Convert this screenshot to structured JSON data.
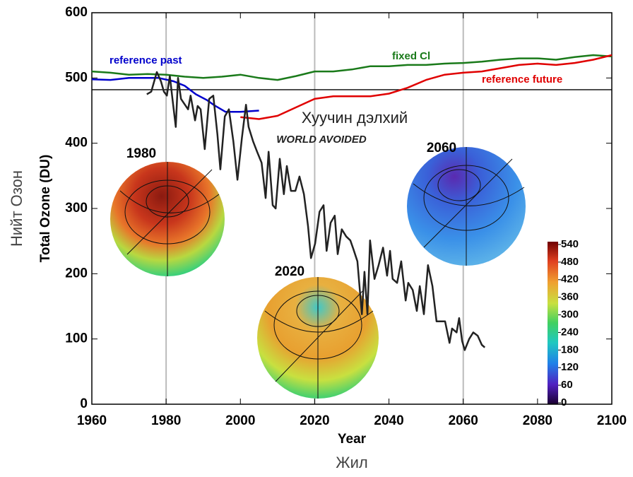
{
  "chart_data": {
    "type": "line",
    "title": "Хуучин дэлхий",
    "xlabel": "Year",
    "ylabel": "Total Ozone (DU)",
    "xlabel_translation": "Жил",
    "ylabel_translation": "Нийт Озон",
    "xlim": [
      1960,
      2100
    ],
    "ylim": [
      0,
      600
    ],
    "xticks": [
      1960,
      1980,
      2000,
      2020,
      2040,
      2060,
      2080,
      2100
    ],
    "yticks": [
      0,
      100,
      200,
      300,
      400,
      500,
      600
    ],
    "vlines": [
      1980,
      2020,
      2060
    ],
    "reference_line": 482,
    "globes": [
      "1980",
      "2020",
      "2060"
    ],
    "colorbar": {
      "lim": [
        0,
        540
      ],
      "ticks": [
        0,
        60,
        120,
        180,
        240,
        300,
        360,
        420,
        480,
        540
      ]
    },
    "series": [
      {
        "name": "reference past",
        "color": "#0000cc",
        "x": [
          1960,
          1965,
          1970,
          1975,
          1978,
          1982,
          1985,
          1988,
          1991,
          1993,
          1996,
          2000,
          2005
        ],
        "values": [
          498,
          497,
          500,
          500,
          500,
          495,
          488,
          475,
          466,
          458,
          448,
          448,
          450
        ]
      },
      {
        "name": "fixed Cl",
        "color": "#1a7a1a",
        "x": [
          1960,
          1965,
          1970,
          1975,
          1980,
          1985,
          1990,
          1995,
          2000,
          2005,
          2010,
          2015,
          2020,
          2025,
          2030,
          2035,
          2040,
          2045,
          2050,
          2055,
          2060,
          2065,
          2070,
          2075,
          2080,
          2085,
          2090,
          2095,
          2100
        ],
        "values": [
          510,
          508,
          505,
          506,
          505,
          502,
          500,
          502,
          505,
          500,
          497,
          503,
          510,
          510,
          513,
          518,
          518,
          520,
          520,
          522,
          523,
          525,
          528,
          530,
          530,
          528,
          532,
          535,
          533
        ]
      },
      {
        "name": "reference future",
        "color": "#e00000",
        "x": [
          2000,
          2005,
          2010,
          2015,
          2020,
          2025,
          2030,
          2035,
          2040,
          2045,
          2050,
          2055,
          2060,
          2065,
          2070,
          2075,
          2080,
          2085,
          2090,
          2095,
          2100
        ],
        "values": [
          440,
          437,
          442,
          455,
          468,
          472,
          472,
          472,
          476,
          485,
          497,
          505,
          508,
          510,
          515,
          520,
          522,
          520,
          523,
          528,
          535
        ]
      },
      {
        "name": "WORLD AVOIDED",
        "color": "#222222",
        "x": [
          1974.8,
          1976,
          1977.5,
          1978.6,
          1979.4,
          1980.2,
          1981,
          1981.7,
          1982.6,
          1983.2,
          1984,
          1984.7,
          1985.9,
          1986.6,
          1987.8,
          1988.5,
          1989.3,
          1990.4,
          1991.6,
          1992.7,
          1993.8,
          1994.6,
          1995.8,
          1996.9,
          1998.1,
          1999.2,
          2000.4,
          2001.5,
          2002.2,
          2003.4,
          2004.5,
          2005.7,
          2006.8,
          2007.6,
          2008.7,
          2009.5,
          2010.6,
          2011.7,
          2012.5,
          2013.6,
          2014.8,
          2015.9,
          2017.1,
          2018.2,
          2019,
          2020.1,
          2021.3,
          2022.4,
          2023.2,
          2024.3,
          2025.4,
          2026.2,
          2027.3,
          2028.5,
          2029.6,
          2030.4,
          2031.5,
          2032.7,
          2033.4,
          2034.2,
          2034.9,
          2036.1,
          2037.2,
          2038.4,
          2039.5,
          2040.3,
          2041,
          2042.2,
          2043.3,
          2044.5,
          2045.2,
          2046.4,
          2047.5,
          2048.3,
          2049.4,
          2050.5,
          2051.7,
          2052.8,
          2054,
          2055.1,
          2056.3,
          2057,
          2058.2,
          2058.9,
          2059.7,
          2060.4,
          2061.6,
          2062.7,
          2063.9,
          2065,
          2065.8
        ],
        "values": [
          475,
          479,
          509,
          495,
          479,
          473,
          503,
          468,
          425,
          500,
          468,
          462,
          452,
          473,
          435,
          457,
          452,
          391,
          468,
          473,
          414,
          360,
          441,
          452,
          403,
          344,
          408,
          459,
          425,
          403,
          387,
          370,
          316,
          387,
          305,
          300,
          376,
          322,
          365,
          327,
          327,
          349,
          322,
          273,
          224,
          246,
          295,
          305,
          235,
          278,
          289,
          230,
          268,
          257,
          251,
          238,
          219,
          138,
          203,
          138,
          251,
          192,
          213,
          240,
          197,
          235,
          192,
          186,
          219,
          159,
          186,
          175,
          143,
          181,
          138,
          213,
          181,
          127,
          127,
          127,
          94,
          116,
          110,
          132,
          97,
          83,
          100,
          110,
          105,
          91,
          87
        ]
      }
    ]
  }
}
